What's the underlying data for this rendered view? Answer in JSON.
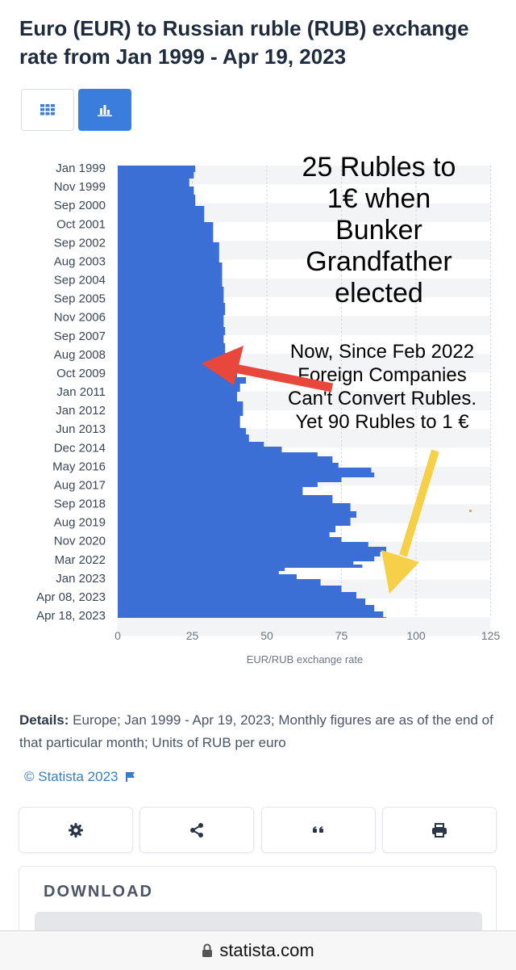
{
  "title": "Euro (EUR) to Russian ruble (RUB) exchange rate from Jan 1999 - Apr 19, 2023",
  "view_toggle": {
    "table_icon": "table-grid-icon",
    "chart_icon": "bar-chart-icon"
  },
  "chart_data": {
    "type": "bar",
    "orientation": "horizontal",
    "xlabel": "EUR/RUB exchange rate",
    "xlim": [
      0,
      125
    ],
    "xticks": [
      0,
      25,
      50,
      75,
      100,
      125
    ],
    "categories_shown": [
      "Jan 1999",
      "Nov 1999",
      "Sep 2000",
      "Oct 2001",
      "Sep 2002",
      "Aug 2003",
      "Sep 2004",
      "Sep 2005",
      "Nov 2006",
      "Sep 2007",
      "Aug 2008",
      "Oct 2009",
      "Jan 2011",
      "Jan 2012",
      "Jun 2013",
      "Dec 2014",
      "May 2016",
      "Aug 2017",
      "Sep 2018",
      "Aug 2019",
      "Nov 2020",
      "Mar 2022",
      "Jan 2023",
      "Apr 08, 2023",
      "Apr 18, 2023"
    ],
    "profile": [
      [
        0,
        26
      ],
      [
        8,
        25.5
      ],
      [
        16,
        24
      ],
      [
        26,
        25.5
      ],
      [
        36,
        26
      ],
      [
        50,
        29
      ],
      [
        70,
        32
      ],
      [
        95,
        34
      ],
      [
        120,
        35
      ],
      [
        150,
        35.5
      ],
      [
        170,
        36
      ],
      [
        185,
        35.5
      ],
      [
        200,
        36
      ],
      [
        210,
        35.5
      ],
      [
        220,
        36
      ],
      [
        232,
        37
      ],
      [
        238,
        38
      ],
      [
        248,
        40
      ],
      [
        262,
        43
      ],
      [
        270,
        41
      ],
      [
        280,
        40
      ],
      [
        292,
        42
      ],
      [
        310,
        41
      ],
      [
        325,
        43
      ],
      [
        333,
        44
      ],
      [
        342,
        49
      ],
      [
        348,
        55
      ],
      [
        355,
        67
      ],
      [
        360,
        72
      ],
      [
        368,
        74
      ],
      [
        374,
        85
      ],
      [
        380,
        86
      ],
      [
        386,
        75
      ],
      [
        392,
        67
      ],
      [
        398,
        62
      ],
      [
        408,
        72
      ],
      [
        418,
        78
      ],
      [
        428,
        80
      ],
      [
        436,
        78
      ],
      [
        446,
        73
      ],
      [
        454,
        71
      ],
      [
        460,
        75
      ],
      [
        466,
        84
      ],
      [
        472,
        90
      ],
      [
        478,
        88
      ],
      [
        484,
        86
      ],
      [
        490,
        79
      ],
      [
        494,
        82
      ],
      [
        498,
        56
      ],
      [
        502,
        54
      ],
      [
        506,
        60
      ],
      [
        512,
        68
      ],
      [
        520,
        75
      ],
      [
        528,
        80
      ],
      [
        536,
        83
      ],
      [
        544,
        86
      ],
      [
        552,
        89
      ],
      [
        559,
        90
      ],
      [
        560,
        90
      ]
    ],
    "grid": true,
    "bar_color": "#3b6fd6",
    "background_stripes": true
  },
  "annotations": {
    "top_text": "25 Rubles to 1€ when Bunker Grandfather elected",
    "mid_text": "Now, Since Feb 2022 Foreign Companies Can't Convert Rubles. Yet 90 Rubles to 1 €",
    "top_arrow_color": "#e8473b",
    "mid_arrow_color": "#f7d04a"
  },
  "details": {
    "label": "Details:",
    "text": "Europe; Jan 1999 - Apr 19, 2023; Monthly figures are as of the end of that particular month; Units of RUB per euro"
  },
  "copyright": "© Statista 2023",
  "actions": {
    "settings_icon": "gear-icon",
    "share_icon": "share-icon",
    "cite_icon": "quote-icon",
    "print_icon": "printer-icon"
  },
  "download": {
    "title": "DOWNLOAD"
  },
  "browser": {
    "url": "statista.com"
  }
}
